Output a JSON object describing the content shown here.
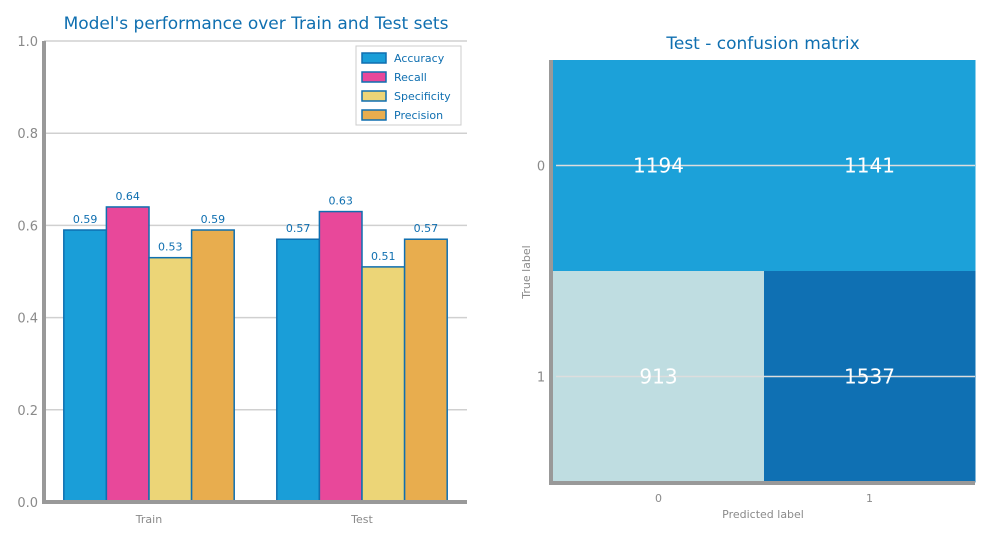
{
  "chart_data": [
    {
      "type": "bar",
      "title": "Model's performance over Train and Test sets",
      "categories": [
        "Train",
        "Test"
      ],
      "series": [
        {
          "name": "Accuracy",
          "values": [
            0.59,
            0.57
          ],
          "color": "#1a9ed8"
        },
        {
          "name": "Recall",
          "values": [
            0.64,
            0.63
          ],
          "color": "#e8489a"
        },
        {
          "name": "Specificity",
          "values": [
            0.53,
            0.51
          ],
          "color": "#ecd577"
        },
        {
          "name": "Precision",
          "values": [
            0.59,
            0.57
          ],
          "color": "#e8ad4e"
        }
      ],
      "ylim": [
        0,
        1.0
      ],
      "yticks": [
        "0.0",
        "0.2",
        "0.4",
        "0.6",
        "0.8",
        "1.0"
      ],
      "grid": true,
      "legend": "top-right",
      "bar_edge_color": "#0f6fb0"
    },
    {
      "type": "heatmap",
      "title": "Test - confusion matrix",
      "xlabel": "Predicted label",
      "ylabel": "True label",
      "xticks": [
        "0",
        "1"
      ],
      "yticks": [
        "0",
        "1"
      ],
      "values": [
        [
          1194,
          1141
        ],
        [
          913,
          1537
        ]
      ],
      "cell_colors": [
        [
          "#1ca1d9",
          "#1ca1d9"
        ],
        [
          "#bfdde1",
          "#0f70b3"
        ]
      ]
    }
  ]
}
